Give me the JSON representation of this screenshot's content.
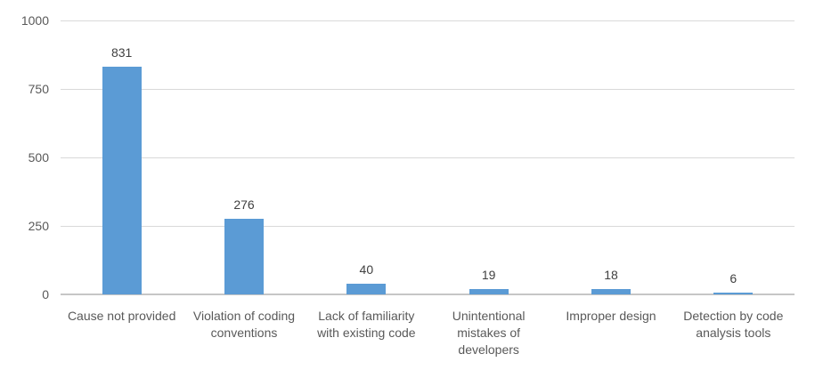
{
  "chart_data": {
    "type": "bar",
    "categories": [
      "Cause not provided",
      "Violation of coding conventions",
      "Lack of familiarity with existing code",
      "Unintentional mistakes of developers",
      "Improper design",
      "Detection by code analysis tools"
    ],
    "values": [
      831,
      276,
      40,
      19,
      18,
      6
    ],
    "title": "",
    "xlabel": "",
    "ylabel": "",
    "ylim": [
      0,
      1000
    ],
    "yticks": [
      0,
      250,
      500,
      750,
      1000
    ],
    "grid": true,
    "legend": false,
    "bar_color": "#5b9bd5",
    "value_label_color": "#404040",
    "axis_label_color": "#595959",
    "gridline_color": "#d9d9d9",
    "axis_line_color": "#c6c6c6",
    "background_color": "#ffffff"
  }
}
